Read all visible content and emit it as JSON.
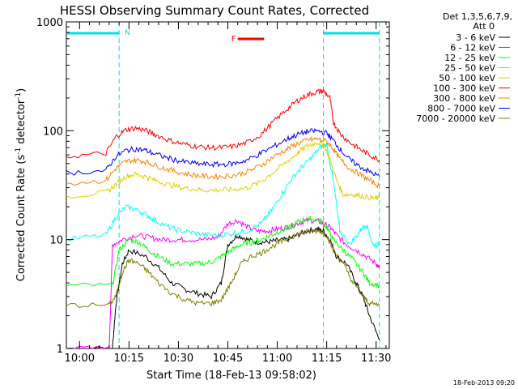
{
  "chart_data": {
    "type": "line",
    "title": "HESSI Observing Summary Count Rates, Corrected",
    "xlabel": "Start Time (18-Feb-13 09:58:02)",
    "ylabel_main": "Corrected Count Rate (s",
    "ylabel_sup1": "-1",
    "ylabel_mid": " detector",
    "ylabel_sup2": "-1",
    "ylabel_end": ")",
    "yscale": "log",
    "xlim_minutes": [
      -2,
      96
    ],
    "ylim": [
      1,
      1000
    ],
    "x_ticks": [
      {
        "t": 2,
        "label": "10:00"
      },
      {
        "t": 17,
        "label": "10:15"
      },
      {
        "t": 32,
        "label": "10:30"
      },
      {
        "t": 47,
        "label": "10:45"
      },
      {
        "t": 62,
        "label": "11:00"
      },
      {
        "t": 77,
        "label": "11:15"
      },
      {
        "t": 92,
        "label": "11:30"
      }
    ],
    "y_ticks": [
      {
        "v": 1,
        "label": "1"
      },
      {
        "v": 10,
        "label": "10"
      },
      {
        "v": 100,
        "label": "100"
      },
      {
        "v": 1000,
        "label": "1000"
      }
    ],
    "legend_header": [
      "Det 1,3,5,6,7,9,",
      "Att 0"
    ],
    "footer_date": "18-Feb-2013 09:20",
    "annotations": {
      "night_label": "N",
      "flare_label": "F",
      "night_color": "#00e0e0",
      "flare_color": "#ff0000",
      "night_intervals": [
        [
          -2,
          14
        ],
        [
          76,
          93
        ]
      ],
      "flare_interval": [
        50,
        58
      ]
    },
    "series": [
      {
        "name": "3 - 6 keV",
        "color": "#000000",
        "points": [
          [
            -2,
            1
          ],
          [
            12,
            1
          ],
          [
            13,
            2.5
          ],
          [
            15,
            6
          ],
          [
            17,
            8
          ],
          [
            22,
            7
          ],
          [
            26,
            5.5
          ],
          [
            30,
            4
          ],
          [
            34,
            3.5
          ],
          [
            38,
            3.2
          ],
          [
            42,
            3
          ],
          [
            45,
            4
          ],
          [
            47,
            9
          ],
          [
            50,
            11
          ],
          [
            53,
            10
          ],
          [
            56,
            9.5
          ],
          [
            59,
            9.5
          ],
          [
            62,
            9.8
          ],
          [
            65,
            10
          ],
          [
            68,
            11
          ],
          [
            71,
            12
          ],
          [
            74,
            12.5
          ],
          [
            76,
            12
          ],
          [
            78,
            10
          ],
          [
            80,
            7
          ],
          [
            83,
            6
          ],
          [
            86,
            4
          ],
          [
            88,
            3
          ],
          [
            90,
            2
          ],
          [
            93,
            1.2
          ]
        ]
      },
      {
        "name": "6 - 12 keV",
        "color": "#ff00ff",
        "points": [
          [
            -2,
            1
          ],
          [
            11,
            1
          ],
          [
            12,
            9
          ],
          [
            15,
            10
          ],
          [
            19,
            11
          ],
          [
            23,
            10.5
          ],
          [
            27,
            10
          ],
          [
            31,
            10
          ],
          [
            35,
            10
          ],
          [
            40,
            10
          ],
          [
            44,
            10.5
          ],
          [
            47,
            14
          ],
          [
            50,
            15
          ],
          [
            53,
            13
          ],
          [
            56,
            12
          ],
          [
            59,
            12
          ],
          [
            62,
            12.5
          ],
          [
            65,
            13
          ],
          [
            68,
            14
          ],
          [
            71,
            15
          ],
          [
            74,
            15
          ],
          [
            76,
            14
          ],
          [
            78,
            13
          ],
          [
            80,
            11
          ],
          [
            83,
            9
          ],
          [
            86,
            8
          ],
          [
            89,
            7
          ],
          [
            92,
            6
          ],
          [
            93,
            5.5
          ]
        ]
      },
      {
        "name": "12 - 25 keV",
        "color": "#00ff00",
        "points": [
          [
            -2,
            3.8
          ],
          [
            12,
            3.8
          ],
          [
            14,
            8
          ],
          [
            17,
            10
          ],
          [
            20,
            9.5
          ],
          [
            23,
            8
          ],
          [
            26,
            7
          ],
          [
            30,
            6
          ],
          [
            34,
            6
          ],
          [
            38,
            6
          ],
          [
            42,
            6.2
          ],
          [
            45,
            7
          ],
          [
            48,
            8
          ],
          [
            51,
            9
          ],
          [
            54,
            9.5
          ],
          [
            57,
            10
          ],
          [
            60,
            11
          ],
          [
            63,
            12
          ],
          [
            66,
            13
          ],
          [
            69,
            15
          ],
          [
            72,
            15.5
          ],
          [
            75,
            15
          ],
          [
            77,
            13
          ],
          [
            79,
            10
          ],
          [
            82,
            8
          ],
          [
            85,
            6.5
          ],
          [
            88,
            5
          ],
          [
            90,
            4
          ],
          [
            93,
            3.8
          ]
        ]
      },
      {
        "name": "25 - 50 keV",
        "color": "#00ffff",
        "points": [
          [
            -2,
            10
          ],
          [
            10,
            11
          ],
          [
            13,
            16
          ],
          [
            16,
            20
          ],
          [
            19,
            19
          ],
          [
            22,
            17
          ],
          [
            25,
            15
          ],
          [
            29,
            13
          ],
          [
            33,
            12
          ],
          [
            37,
            11.5
          ],
          [
            41,
            11
          ],
          [
            45,
            11
          ],
          [
            49,
            11.5
          ],
          [
            53,
            12
          ],
          [
            57,
            14
          ],
          [
            60,
            18
          ],
          [
            63,
            25
          ],
          [
            66,
            35
          ],
          [
            69,
            45
          ],
          [
            72,
            55
          ],
          [
            75,
            70
          ],
          [
            77,
            75
          ],
          [
            79,
            35
          ],
          [
            81,
            12
          ],
          [
            84,
            9
          ],
          [
            87,
            12
          ],
          [
            89,
            14
          ],
          [
            91,
            9
          ],
          [
            93,
            9
          ]
        ]
      },
      {
        "name": "50 - 100 keV",
        "color": "#e0d000",
        "points": [
          [
            -2,
            25
          ],
          [
            10,
            27
          ],
          [
            13,
            32
          ],
          [
            16,
            38
          ],
          [
            19,
            40
          ],
          [
            22,
            38
          ],
          [
            25,
            35
          ],
          [
            29,
            32
          ],
          [
            33,
            30
          ],
          [
            37,
            29
          ],
          [
            41,
            28.5
          ],
          [
            45,
            28.5
          ],
          [
            49,
            29
          ],
          [
            53,
            30
          ],
          [
            57,
            34
          ],
          [
            61,
            42
          ],
          [
            65,
            52
          ],
          [
            68,
            62
          ],
          [
            71,
            72
          ],
          [
            74,
            78
          ],
          [
            76,
            76
          ],
          [
            78,
            55
          ],
          [
            80,
            35
          ],
          [
            82,
            26
          ],
          [
            85,
            26
          ],
          [
            88,
            25
          ],
          [
            91,
            24
          ],
          [
            93,
            24
          ]
        ]
      },
      {
        "name": "100 - 300 keV",
        "color": "#ff0000",
        "points": [
          [
            -2,
            58
          ],
          [
            10,
            62
          ],
          [
            13,
            88
          ],
          [
            16,
            102
          ],
          [
            19,
            106
          ],
          [
            22,
            101
          ],
          [
            25,
            92
          ],
          [
            29,
            82
          ],
          [
            33,
            76
          ],
          [
            37,
            72
          ],
          [
            41,
            70
          ],
          [
            45,
            70
          ],
          [
            49,
            72
          ],
          [
            53,
            78
          ],
          [
            57,
            92
          ],
          [
            61,
            122
          ],
          [
            65,
            158
          ],
          [
            68,
            188
          ],
          [
            71,
            212
          ],
          [
            74,
            228
          ],
          [
            76,
            232
          ],
          [
            78,
            200
          ],
          [
            79,
            120
          ],
          [
            81,
            95
          ],
          [
            84,
            78
          ],
          [
            87,
            68
          ],
          [
            90,
            60
          ],
          [
            93,
            54
          ]
        ]
      },
      {
        "name": "300 - 800 keV",
        "color": "#ff8000",
        "points": [
          [
            -2,
            33
          ],
          [
            10,
            35
          ],
          [
            13,
            45
          ],
          [
            16,
            52
          ],
          [
            19,
            54
          ],
          [
            22,
            52
          ],
          [
            25,
            48
          ],
          [
            29,
            44
          ],
          [
            33,
            41
          ],
          [
            37,
            39
          ],
          [
            41,
            38
          ],
          [
            45,
            38
          ],
          [
            49,
            39
          ],
          [
            53,
            42
          ],
          [
            57,
            48
          ],
          [
            61,
            58
          ],
          [
            65,
            68
          ],
          [
            68,
            76
          ],
          [
            71,
            82
          ],
          [
            74,
            84
          ],
          [
            77,
            80
          ],
          [
            79,
            68
          ],
          [
            81,
            55
          ],
          [
            84,
            45
          ],
          [
            87,
            40
          ],
          [
            90,
            35
          ],
          [
            93,
            31
          ]
        ]
      },
      {
        "name": "800 - 7000 keV",
        "color": "#0000ff",
        "points": [
          [
            -2,
            41
          ],
          [
            10,
            43
          ],
          [
            13,
            58
          ],
          [
            16,
            66
          ],
          [
            19,
            68
          ],
          [
            22,
            66
          ],
          [
            25,
            61
          ],
          [
            29,
            56
          ],
          [
            33,
            52
          ],
          [
            37,
            50
          ],
          [
            41,
            49
          ],
          [
            45,
            49
          ],
          [
            49,
            50
          ],
          [
            53,
            54
          ],
          [
            57,
            62
          ],
          [
            61,
            72
          ],
          [
            65,
            84
          ],
          [
            68,
            92
          ],
          [
            71,
            98
          ],
          [
            74,
            100
          ],
          [
            77,
            95
          ],
          [
            79,
            82
          ],
          [
            81,
            68
          ],
          [
            84,
            54
          ],
          [
            87,
            47
          ],
          [
            90,
            42
          ],
          [
            93,
            38
          ]
        ]
      },
      {
        "name": "7000 - 20000 keV",
        "color": "#808000",
        "points": [
          [
            -2,
            2.5
          ],
          [
            11,
            2.5
          ],
          [
            13,
            3
          ],
          [
            15,
            5
          ],
          [
            17,
            6.5
          ],
          [
            20,
            6
          ],
          [
            23,
            5
          ],
          [
            26,
            4
          ],
          [
            30,
            3.2
          ],
          [
            34,
            2.8
          ],
          [
            38,
            2.6
          ],
          [
            42,
            2.6
          ],
          [
            45,
            2.8
          ],
          [
            48,
            4
          ],
          [
            51,
            6
          ],
          [
            54,
            7
          ],
          [
            57,
            7.5
          ],
          [
            60,
            8.5
          ],
          [
            63,
            9.5
          ],
          [
            66,
            10.5
          ],
          [
            69,
            11.5
          ],
          [
            72,
            12
          ],
          [
            75,
            12
          ],
          [
            77,
            11
          ],
          [
            79,
            8
          ],
          [
            82,
            6
          ],
          [
            85,
            4
          ],
          [
            88,
            3
          ],
          [
            90,
            2.6
          ],
          [
            93,
            2.5
          ]
        ]
      }
    ]
  }
}
